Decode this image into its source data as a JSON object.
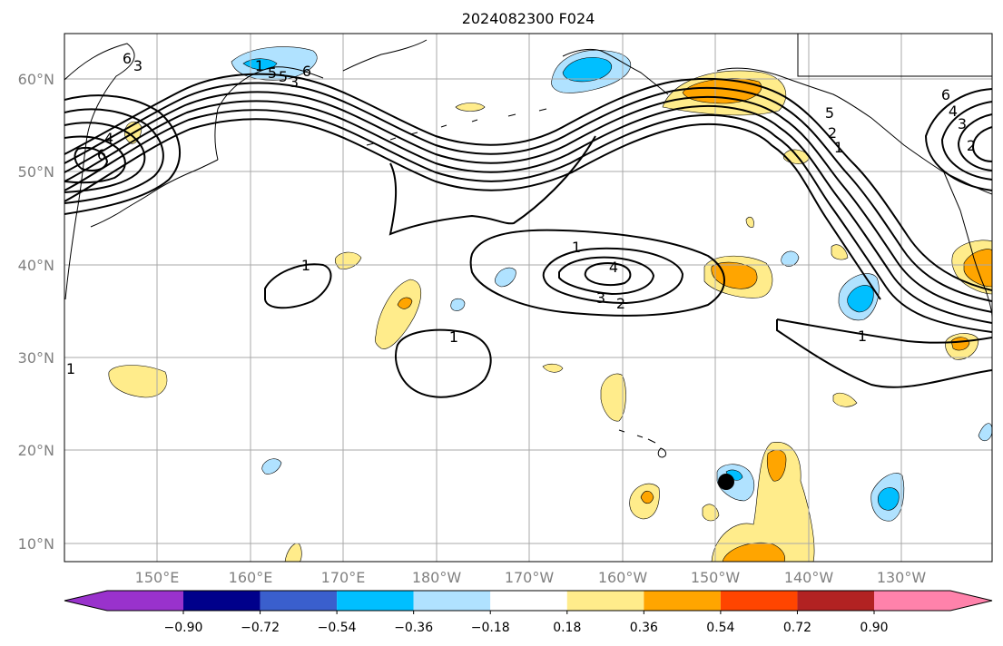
{
  "title": "2024082300 F024",
  "lat_ticks": [
    "60°N",
    "50°N",
    "40°N",
    "30°N",
    "20°N",
    "10°N"
  ],
  "lon_ticks": [
    "150°E",
    "160°E",
    "170°E",
    "180°W",
    "170°W",
    "160°W",
    "150°W",
    "140°W",
    "130°W"
  ],
  "contour_labels": [
    "1",
    "1",
    "1",
    "1",
    "1",
    "2",
    "3",
    "4",
    "2",
    "3",
    "4",
    "6",
    "6",
    "5",
    "1",
    "2",
    "3",
    "4",
    "5",
    "6",
    "1",
    "5",
    "3",
    "6"
  ],
  "colorbar": {
    "tick_labels": [
      "−0.90",
      "−0.72",
      "−0.54",
      "−0.36",
      "−0.18",
      "0.18",
      "0.36",
      "0.54",
      "0.72",
      "0.90"
    ],
    "colors": [
      "#9932cc",
      "#00008b",
      "#3a5fcd",
      "#00bfff",
      "#b0e2ff",
      "#ffffff",
      "#ffec8b",
      "#ffa500",
      "#ff4500",
      "#b22222",
      "#ff82ab"
    ]
  },
  "colors": {
    "grid": "#a8a8a8",
    "tick_label": "#808080",
    "contour": "#000000",
    "coast": "#000000"
  }
}
